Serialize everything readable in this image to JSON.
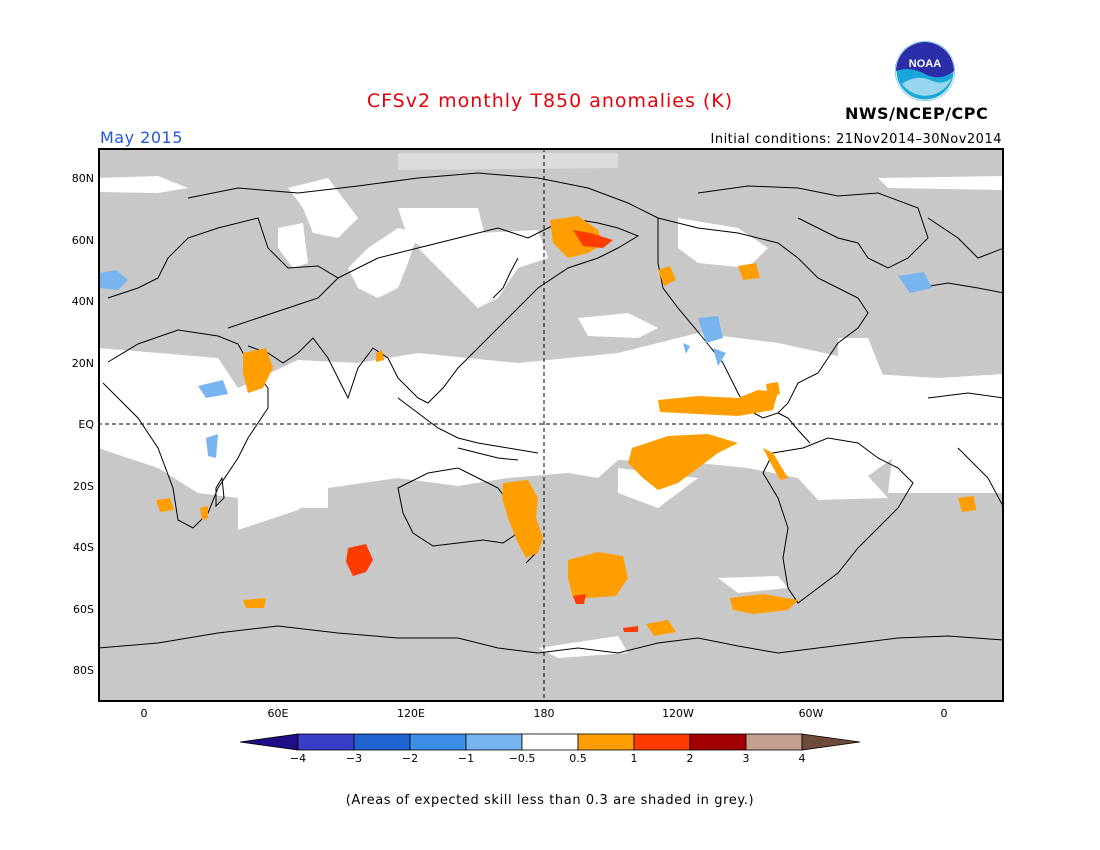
{
  "title": "CFSv2 monthly T850 anomalies (K)",
  "period": "May 2015",
  "initial_conditions": "Initial conditions: 21Nov2014–30Nov2014",
  "agency": "NWS/NCEP/CPC",
  "logo": {
    "text": "NOAA",
    "icon": "noaa-logo"
  },
  "lat_labels": [
    "80N",
    "60N",
    "40N",
    "20N",
    "EQ",
    "20S",
    "40S",
    "60S",
    "80S"
  ],
  "lon_labels": [
    "0",
    "60E",
    "120E",
    "180",
    "120W",
    "60W",
    "0"
  ],
  "colorbar": {
    "labels": [
      "−4",
      "−3",
      "−2",
      "−1",
      "−0.5",
      "0.5",
      "1",
      "2",
      "3",
      "4"
    ],
    "colors": [
      "#1f0f86",
      "#3a3fc8",
      "#1f63d0",
      "#3d8ee8",
      "#78b4f0",
      "#ffffff",
      "#ff9e00",
      "#ff3c00",
      "#a30000",
      "#c4a08e",
      "#6e4a3a"
    ]
  },
  "footnote": "(Areas of expected skill less than 0.3 are shaded in grey.)",
  "colors": {
    "title": "#e8000b",
    "period": "#2157d8",
    "grey_mask": "#c8c8c8",
    "positive_small": "#ff9e00",
    "positive_mid": "#ff3c00",
    "negative_small": "#78b4f0"
  }
}
